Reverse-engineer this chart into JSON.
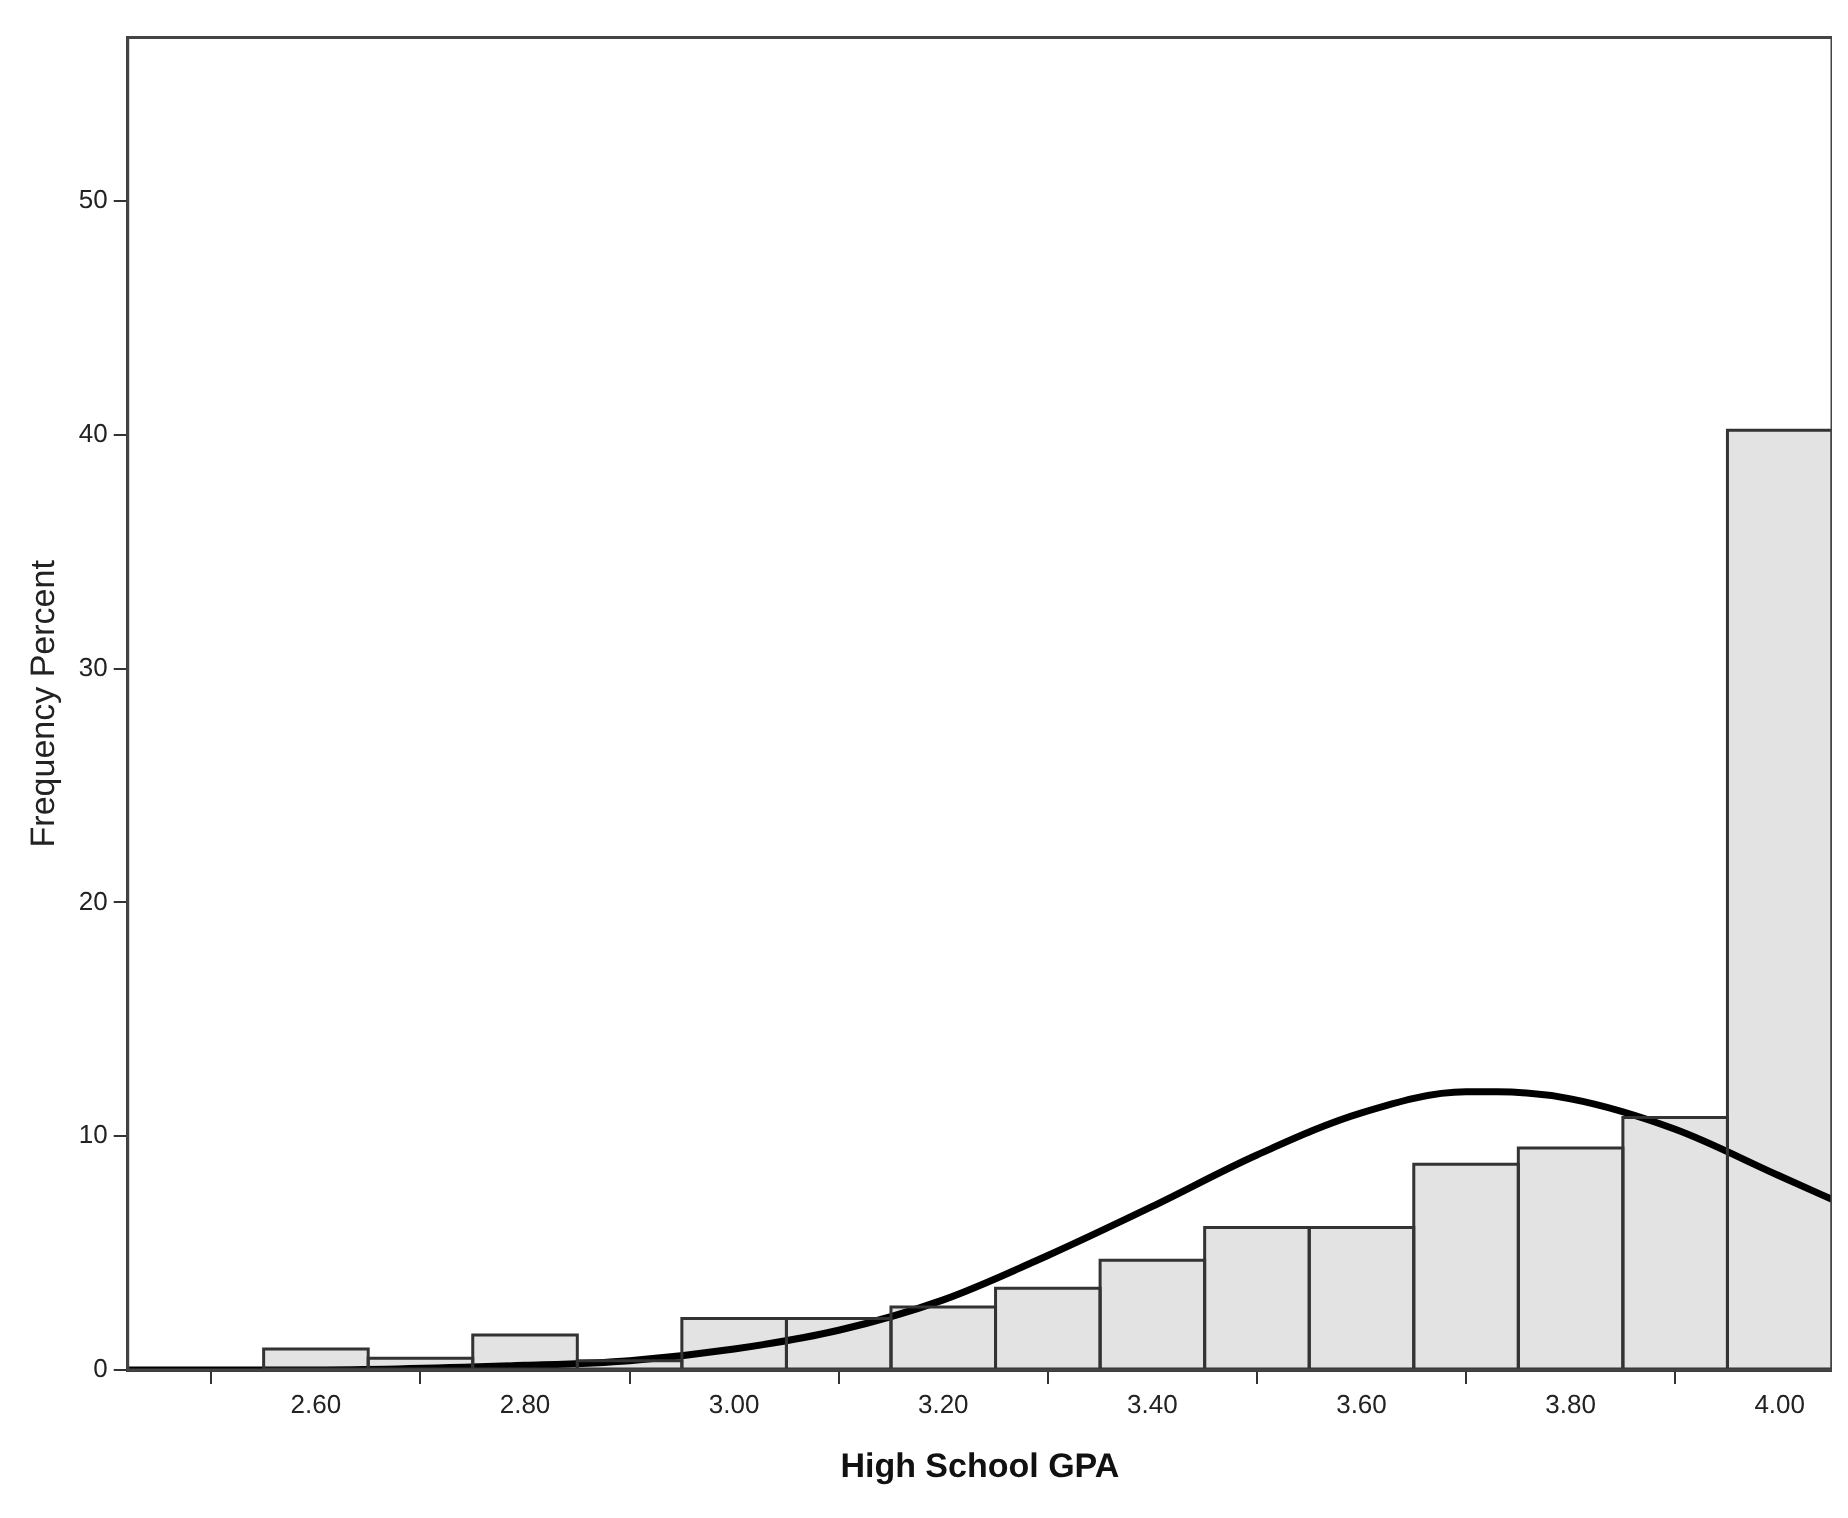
{
  "chart_data": {
    "type": "histogram",
    "xlabel": "High School GPA",
    "ylabel": "Frequency Percent",
    "bins": [
      2.55,
      2.65,
      2.75,
      2.85,
      2.95,
      3.05,
      3.15,
      3.25,
      3.35,
      3.45,
      3.55,
      3.65,
      3.75,
      3.85,
      3.95,
      4.05
    ],
    "values": [
      0.9,
      0.5,
      1.5,
      0.4,
      2.2,
      2.2,
      2.7,
      3.5,
      4.7,
      6.1,
      6.1,
      8.8,
      9.5,
      10.8,
      40.2
    ],
    "color": "#e3e3e3",
    "series": [
      {
        "type": "line",
        "color": "#000000",
        "x": [
          2.42,
          2.6,
          2.8,
          2.9,
          3.0,
          3.1,
          3.2,
          3.3,
          3.4,
          3.5,
          3.6,
          3.7,
          3.73,
          3.8,
          3.9,
          4.0,
          4.05
        ],
        "values": [
          0,
          0,
          0.2,
          0.4,
          0.9,
          1.7,
          3.0,
          4.9,
          7.0,
          9.2,
          11.0,
          11.9,
          11.9,
          11.6,
          10.3,
          8.3,
          7.3
        ]
      }
    ],
    "xlim": [
      2.42,
      4.05
    ],
    "xticks": [
      {
        "value": 2.6,
        "label": "2.60"
      },
      {
        "value": 2.8,
        "label": "2.80"
      },
      {
        "value": 3.0,
        "label": "3.00"
      },
      {
        "value": 3.2,
        "label": "3.20"
      },
      {
        "value": 3.4,
        "label": "3.40"
      },
      {
        "value": 3.6,
        "label": "3.60"
      },
      {
        "value": 3.8,
        "label": "3.80"
      },
      {
        "value": 4.0,
        "label": "4.00"
      }
    ],
    "ylim": [
      0,
      57
    ],
    "yticks": [
      0,
      10,
      20,
      30,
      40,
      50
    ],
    "grid": false,
    "legend": false,
    "marker": "none",
    "line_style": "solid"
  }
}
